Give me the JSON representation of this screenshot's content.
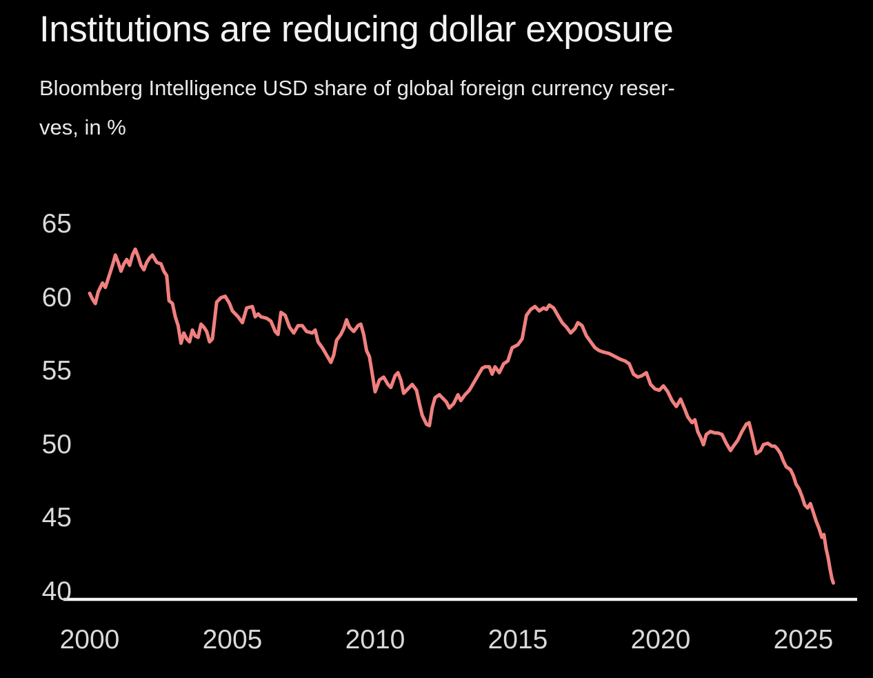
{
  "header": {
    "title": "Institutions are reducing dollar exposure",
    "subtitle_lines": [
      "Bloomberg Intelligence USD share of global foreign currency reser-",
      "ves, in %"
    ]
  },
  "chart_data": {
    "type": "line",
    "title": "Institutions are reducing dollar exposure",
    "subtitle": "Bloomberg Intelligence USD share of global foreign currency reserves, in %",
    "xlabel": "",
    "ylabel": "USD share of global foreign currency reserves, in %",
    "x_ticks": [
      2000,
      2005,
      2010,
      2015,
      2020,
      2025
    ],
    "y_ticks": [
      65,
      60,
      55,
      50,
      45,
      40
    ],
    "xlim": [
      2000,
      2026.5
    ],
    "ylim": [
      39.5,
      66
    ],
    "grid": false,
    "legend": false,
    "colors": {
      "background": "#000000",
      "line": "#f0807e",
      "axis_line": "#f5f5f5",
      "tick_labels": "#dadada",
      "title": "#f3f3f3",
      "subtitle": "#e9e9e9"
    },
    "series": [
      {
        "name": "USD share",
        "x": [
          2000.0,
          2000.1,
          2000.2,
          2000.3,
          2000.45,
          2000.55,
          2000.7,
          2000.8,
          2000.9,
          2001.0,
          2001.1,
          2001.2,
          2001.3,
          2001.4,
          2001.5,
          2001.6,
          2001.7,
          2001.8,
          2001.9,
          2002.0,
          2002.1,
          2002.2,
          2002.35,
          2002.5,
          2002.6,
          2002.7,
          2002.78,
          2002.9,
          2003.0,
          2003.1,
          2003.2,
          2003.3,
          2003.4,
          2003.5,
          2003.6,
          2003.7,
          2003.8,
          2003.9,
          2004.0,
          2004.1,
          2004.2,
          2004.3,
          2004.45,
          2004.6,
          2004.75,
          2004.9,
          2005.0,
          2005.2,
          2005.35,
          2005.5,
          2005.7,
          2005.8,
          2005.9,
          2006.0,
          2006.2,
          2006.35,
          2006.5,
          2006.6,
          2006.7,
          2006.85,
          2007.0,
          2007.15,
          2007.3,
          2007.45,
          2007.6,
          2007.8,
          2007.9,
          2008.0,
          2008.15,
          2008.3,
          2008.45,
          2008.55,
          2008.65,
          2008.8,
          2008.9,
          2009.0,
          2009.1,
          2009.25,
          2009.4,
          2009.5,
          2009.6,
          2009.7,
          2009.8,
          2009.9,
          2010.0,
          2010.15,
          2010.3,
          2010.45,
          2010.55,
          2010.7,
          2010.8,
          2010.9,
          2011.0,
          2011.15,
          2011.3,
          2011.45,
          2011.55,
          2011.65,
          2011.8,
          2011.9,
          2012.0,
          2012.1,
          2012.25,
          2012.4,
          2012.5,
          2012.6,
          2012.75,
          2012.9,
          2013.0,
          2013.15,
          2013.3,
          2013.45,
          2013.6,
          2013.75,
          2013.85,
          2014.0,
          2014.1,
          2014.2,
          2014.35,
          2014.5,
          2014.65,
          2014.8,
          2014.9,
          2015.0,
          2015.15,
          2015.3,
          2015.45,
          2015.6,
          2015.75,
          2015.9,
          2016.0,
          2016.1,
          2016.25,
          2016.4,
          2016.55,
          2016.7,
          2016.85,
          2017.0,
          2017.1,
          2017.25,
          2017.4,
          2017.55,
          2017.7,
          2017.85,
          2018.0,
          2018.2,
          2018.4,
          2018.6,
          2018.75,
          2018.9,
          2019.05,
          2019.2,
          2019.35,
          2019.5,
          2019.65,
          2019.8,
          2019.95,
          2020.1,
          2020.25,
          2020.4,
          2020.55,
          2020.7,
          2020.85,
          2020.95,
          2021.1,
          2021.2,
          2021.3,
          2021.4,
          2021.5,
          2021.6,
          2021.75,
          2021.9,
          2022.0,
          2022.15,
          2022.3,
          2022.45,
          2022.55,
          2022.7,
          2022.85,
          2023.0,
          2023.1,
          2023.2,
          2023.35,
          2023.5,
          2023.6,
          2023.75,
          2023.9,
          2024.0,
          2024.1,
          2024.2,
          2024.3,
          2024.4,
          2024.55,
          2024.65,
          2024.75,
          2024.85,
          2024.95,
          2025.05,
          2025.15,
          2025.25,
          2025.35,
          2025.45,
          2025.55,
          2025.65,
          2025.72,
          2025.8,
          2025.87,
          2025.93,
          2026.0,
          2026.05
        ],
        "values": [
          60.3,
          59.9,
          59.6,
          60.4,
          61.0,
          60.7,
          61.6,
          62.2,
          62.9,
          62.4,
          61.8,
          62.3,
          62.6,
          62.2,
          62.9,
          63.3,
          62.8,
          62.2,
          61.9,
          62.4,
          62.7,
          62.9,
          62.4,
          62.3,
          61.8,
          61.5,
          59.8,
          59.6,
          58.7,
          58.1,
          56.9,
          57.6,
          57.2,
          57.0,
          57.8,
          57.4,
          57.3,
          58.2,
          58.0,
          57.7,
          57.0,
          57.2,
          59.7,
          60.0,
          60.1,
          59.6,
          59.1,
          58.7,
          58.3,
          59.3,
          59.4,
          58.7,
          58.9,
          58.7,
          58.6,
          58.4,
          57.7,
          57.5,
          59.0,
          58.8,
          58.0,
          57.6,
          58.1,
          58.1,
          57.7,
          57.6,
          57.8,
          57.0,
          56.6,
          56.1,
          55.6,
          56.1,
          57.1,
          57.5,
          57.9,
          58.5,
          58.0,
          57.7,
          58.1,
          58.2,
          57.5,
          56.4,
          56.0,
          54.8,
          53.6,
          54.4,
          54.6,
          54.1,
          53.9,
          54.7,
          54.9,
          54.4,
          53.5,
          53.8,
          54.1,
          53.7,
          52.8,
          52.0,
          51.4,
          51.3,
          52.5,
          53.2,
          53.4,
          53.1,
          52.9,
          52.5,
          52.8,
          53.4,
          53.0,
          53.4,
          53.7,
          54.2,
          54.7,
          55.2,
          55.3,
          55.3,
          54.8,
          55.3,
          54.9,
          55.5,
          55.7,
          56.6,
          56.7,
          56.8,
          57.2,
          58.8,
          59.2,
          59.4,
          59.1,
          59.3,
          59.2,
          59.5,
          59.3,
          58.8,
          58.3,
          58.0,
          57.6,
          57.9,
          58.3,
          58.1,
          57.4,
          57.0,
          56.6,
          56.4,
          56.3,
          56.2,
          56.0,
          55.8,
          55.7,
          55.5,
          54.8,
          54.6,
          54.7,
          54.9,
          54.1,
          53.8,
          53.7,
          54.0,
          53.6,
          53.0,
          52.6,
          53.1,
          52.4,
          51.9,
          51.5,
          51.7,
          50.9,
          50.5,
          50.0,
          50.7,
          50.9,
          50.8,
          50.8,
          50.7,
          50.1,
          49.6,
          49.9,
          50.3,
          50.9,
          51.4,
          51.5,
          50.7,
          49.4,
          49.6,
          50.0,
          50.1,
          49.9,
          49.9,
          49.7,
          49.4,
          48.9,
          48.5,
          48.3,
          47.9,
          47.3,
          47.0,
          46.5,
          45.9,
          45.7,
          46.0,
          45.4,
          44.8,
          44.3,
          43.7,
          43.9,
          42.9,
          42.3,
          41.6,
          40.9,
          40.6
        ]
      }
    ]
  }
}
